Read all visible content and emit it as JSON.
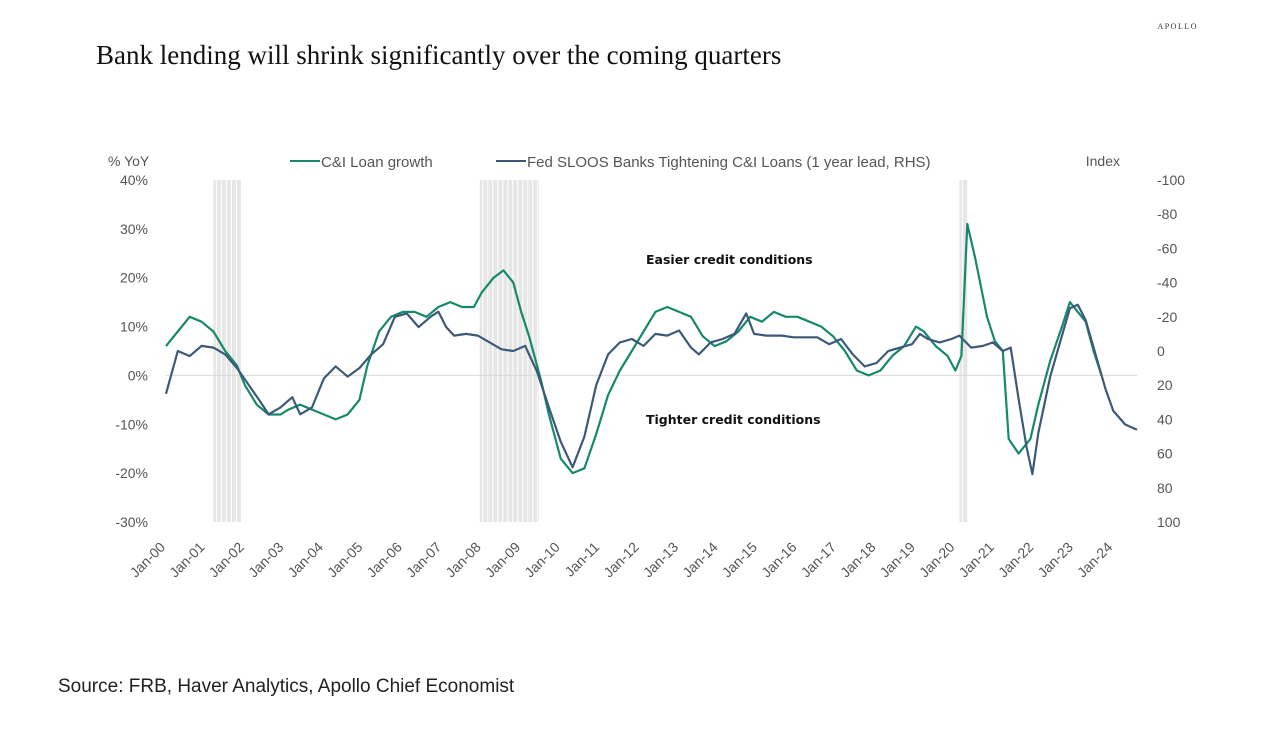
{
  "brand": "APOLLO",
  "title": "Bank lending will shrink significantly over the coming quarters",
  "source": "Source: FRB, Haver Analytics, Apollo Chief Economist",
  "chart_data": {
    "type": "line",
    "ylabel_left": "% YoY",
    "ylabel_right": "Index",
    "left_ticks": [
      "40%",
      "30%",
      "20%",
      "10%",
      "0%",
      "-10%",
      "-20%",
      "-30%"
    ],
    "left_ylim": [
      -30,
      40
    ],
    "right_ticks": [
      "-100",
      "-80",
      "-60",
      "-40",
      "-20",
      "0",
      "20",
      "40",
      "60",
      "80",
      "100"
    ],
    "right_ylim": [
      -100,
      100
    ],
    "right_axis_inverted": true,
    "x_ticks": [
      "Jan-00",
      "Jan-01",
      "Jan-02",
      "Jan-03",
      "Jan-04",
      "Jan-05",
      "Jan-06",
      "Jan-07",
      "Jan-08",
      "Jan-09",
      "Jan-10",
      "Jan-11",
      "Jan-12",
      "Jan-13",
      "Jan-14",
      "Jan-15",
      "Jan-16",
      "Jan-17",
      "Jan-18",
      "Jan-19",
      "Jan-20",
      "Jan-21",
      "Jan-22",
      "Jan-23",
      "Jan-24"
    ],
    "annotations": [
      "Easier credit conditions",
      "Tighter credit conditions"
    ],
    "recessions": [
      [
        2001.2,
        2001.9
      ],
      [
        2007.95,
        2009.45
      ],
      [
        2020.1,
        2020.3
      ]
    ],
    "series": [
      {
        "name": "C&I Loan growth",
        "axis": "left",
        "color": "#17896b",
        "points": [
          [
            2000.0,
            6
          ],
          [
            2000.3,
            9
          ],
          [
            2000.6,
            12
          ],
          [
            2000.9,
            11
          ],
          [
            2001.2,
            9
          ],
          [
            2001.5,
            5
          ],
          [
            2001.8,
            2
          ],
          [
            2002.0,
            -2
          ],
          [
            2002.3,
            -6
          ],
          [
            2002.6,
            -8
          ],
          [
            2002.9,
            -8
          ],
          [
            2003.1,
            -7
          ],
          [
            2003.4,
            -6
          ],
          [
            2003.7,
            -7
          ],
          [
            2004.0,
            -8
          ],
          [
            2004.3,
            -9
          ],
          [
            2004.6,
            -8
          ],
          [
            2004.9,
            -5
          ],
          [
            2005.1,
            2
          ],
          [
            2005.4,
            9
          ],
          [
            2005.7,
            12
          ],
          [
            2006.0,
            13
          ],
          [
            2006.3,
            13
          ],
          [
            2006.6,
            12
          ],
          [
            2006.9,
            14
          ],
          [
            2007.2,
            15
          ],
          [
            2007.5,
            14
          ],
          [
            2007.8,
            14
          ],
          [
            2008.0,
            17
          ],
          [
            2008.3,
            20
          ],
          [
            2008.55,
            21.5
          ],
          [
            2008.8,
            19
          ],
          [
            2009.0,
            13
          ],
          [
            2009.2,
            8
          ],
          [
            2009.5,
            -1
          ],
          [
            2009.7,
            -8
          ],
          [
            2010.0,
            -17
          ],
          [
            2010.3,
            -20
          ],
          [
            2010.6,
            -19
          ],
          [
            2010.9,
            -12
          ],
          [
            2011.2,
            -4
          ],
          [
            2011.5,
            1
          ],
          [
            2011.8,
            5
          ],
          [
            2012.1,
            9
          ],
          [
            2012.4,
            13
          ],
          [
            2012.7,
            14
          ],
          [
            2013.0,
            13
          ],
          [
            2013.3,
            12
          ],
          [
            2013.6,
            8
          ],
          [
            2013.9,
            6
          ],
          [
            2014.2,
            7
          ],
          [
            2014.5,
            9
          ],
          [
            2014.8,
            12
          ],
          [
            2015.1,
            11
          ],
          [
            2015.4,
            13
          ],
          [
            2015.7,
            12
          ],
          [
            2016.0,
            12
          ],
          [
            2016.3,
            11
          ],
          [
            2016.6,
            10
          ],
          [
            2016.9,
            8
          ],
          [
            2017.2,
            5
          ],
          [
            2017.5,
            1
          ],
          [
            2017.8,
            0
          ],
          [
            2018.1,
            1
          ],
          [
            2018.4,
            4
          ],
          [
            2018.7,
            6
          ],
          [
            2019.0,
            10
          ],
          [
            2019.2,
            9
          ],
          [
            2019.5,
            6
          ],
          [
            2019.8,
            4
          ],
          [
            2020.0,
            1
          ],
          [
            2020.15,
            4
          ],
          [
            2020.3,
            31
          ],
          [
            2020.5,
            24
          ],
          [
            2020.8,
            12
          ],
          [
            2021.0,
            7
          ],
          [
            2021.2,
            5
          ],
          [
            2021.35,
            -13
          ],
          [
            2021.6,
            -16
          ],
          [
            2021.9,
            -13
          ],
          [
            2022.1,
            -6
          ],
          [
            2022.4,
            3
          ],
          [
            2022.7,
            10
          ],
          [
            2022.9,
            15
          ],
          [
            2023.1,
            13
          ],
          [
            2023.3,
            11
          ],
          [
            2023.5,
            5
          ],
          [
            2023.7,
            0
          ]
        ]
      },
      {
        "name": "Fed SLOOS Banks Tightening C&I Loans (1 year lead, RHS)",
        "axis": "right",
        "color": "#3c5a78",
        "points": [
          [
            2000.0,
            25
          ],
          [
            2000.3,
            0
          ],
          [
            2000.6,
            3
          ],
          [
            2000.9,
            -3
          ],
          [
            2001.2,
            -2
          ],
          [
            2001.5,
            2
          ],
          [
            2001.8,
            10
          ],
          [
            2002.1,
            20
          ],
          [
            2002.4,
            30
          ],
          [
            2002.6,
            37
          ],
          [
            2002.9,
            33
          ],
          [
            2003.2,
            27
          ],
          [
            2003.4,
            37
          ],
          [
            2003.7,
            33
          ],
          [
            2004.0,
            16
          ],
          [
            2004.3,
            9
          ],
          [
            2004.6,
            15
          ],
          [
            2004.9,
            10
          ],
          [
            2005.2,
            2
          ],
          [
            2005.5,
            -4
          ],
          [
            2005.8,
            -20
          ],
          [
            2006.1,
            -22
          ],
          [
            2006.4,
            -14
          ],
          [
            2006.7,
            -20
          ],
          [
            2006.9,
            -23
          ],
          [
            2007.1,
            -14
          ],
          [
            2007.3,
            -9
          ],
          [
            2007.6,
            -10
          ],
          [
            2007.9,
            -9
          ],
          [
            2008.2,
            -5
          ],
          [
            2008.5,
            -1
          ],
          [
            2008.8,
            0
          ],
          [
            2009.1,
            -3
          ],
          [
            2009.4,
            12
          ],
          [
            2009.7,
            33
          ],
          [
            2010.0,
            53
          ],
          [
            2010.3,
            68
          ],
          [
            2010.6,
            50
          ],
          [
            2010.9,
            20
          ],
          [
            2011.2,
            2
          ],
          [
            2011.5,
            -5
          ],
          [
            2011.8,
            -7
          ],
          [
            2012.1,
            -3
          ],
          [
            2012.4,
            -10
          ],
          [
            2012.7,
            -9
          ],
          [
            2013.0,
            -12
          ],
          [
            2013.3,
            -2
          ],
          [
            2013.5,
            2
          ],
          [
            2013.8,
            -5
          ],
          [
            2014.1,
            -7
          ],
          [
            2014.4,
            -10
          ],
          [
            2014.7,
            -22
          ],
          [
            2014.9,
            -10
          ],
          [
            2015.2,
            -9
          ],
          [
            2015.6,
            -9
          ],
          [
            2015.9,
            -8
          ],
          [
            2016.2,
            -8
          ],
          [
            2016.5,
            -8
          ],
          [
            2016.8,
            -4
          ],
          [
            2017.1,
            -7
          ],
          [
            2017.4,
            2
          ],
          [
            2017.7,
            9
          ],
          [
            2018.0,
            7
          ],
          [
            2018.3,
            0
          ],
          [
            2018.6,
            -2
          ],
          [
            2018.9,
            -4
          ],
          [
            2019.1,
            -10
          ],
          [
            2019.3,
            -7
          ],
          [
            2019.6,
            -5
          ],
          [
            2019.9,
            -7
          ],
          [
            2020.1,
            -9
          ],
          [
            2020.4,
            -2
          ],
          [
            2020.7,
            -3
          ],
          [
            2020.95,
            -5
          ],
          [
            2021.2,
            0
          ],
          [
            2021.4,
            -2
          ],
          [
            2021.6,
            28
          ],
          [
            2021.8,
            56
          ],
          [
            2021.95,
            72
          ],
          [
            2022.1,
            48
          ],
          [
            2022.4,
            15
          ],
          [
            2022.7,
            -9
          ],
          [
            2022.9,
            -25
          ],
          [
            2023.1,
            -27
          ],
          [
            2023.3,
            -18
          ],
          [
            2023.5,
            -2
          ],
          [
            2023.8,
            22
          ],
          [
            2024.0,
            35
          ],
          [
            2024.3,
            43
          ],
          [
            2024.6,
            46
          ]
        ]
      }
    ]
  }
}
